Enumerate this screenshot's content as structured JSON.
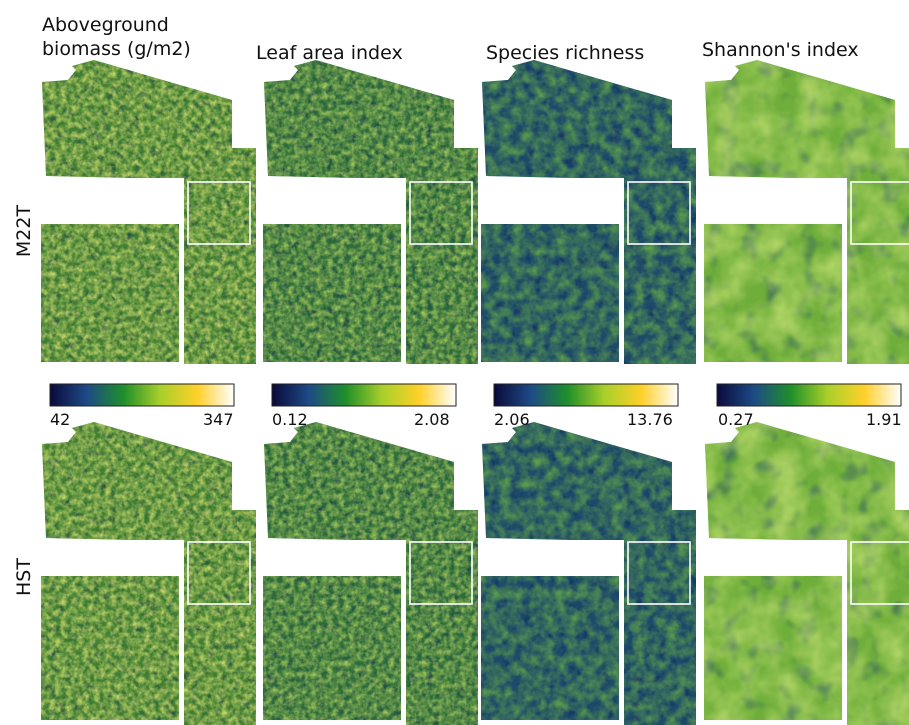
{
  "columns": [
    {
      "title": "Aboveground\nbiomass (g/m2)",
      "min": "42",
      "max": "347",
      "ramp": [
        "#0a0a3a",
        "#1d4a86",
        "#1f8f2a",
        "#a9cf2a",
        "#ffd02a",
        "#ffffff"
      ]
    },
    {
      "title": "Leaf area index",
      "min": "0.12",
      "max": "2.08",
      "ramp": [
        "#0a0a3a",
        "#1d4a86",
        "#1f8f2a",
        "#a9cf2a",
        "#ffd02a",
        "#ffffff"
      ]
    },
    {
      "title": "Species richness",
      "min": "2.06",
      "max": "13.76",
      "ramp": [
        "#0a0a3a",
        "#1d4a86",
        "#1f8f2a",
        "#a9cf2a",
        "#ffd02a",
        "#ffffff"
      ]
    },
    {
      "title": "Shannon's index",
      "min": "0.27",
      "max": "1.91",
      "ramp": [
        "#0a0a3a",
        "#1d4a86",
        "#1f8f2a",
        "#a9cf2a",
        "#ffd02a",
        "#ffffff"
      ]
    }
  ],
  "rows": [
    {
      "label": "M22T"
    },
    {
      "label": "HST"
    }
  ],
  "palette": {
    "panel_base": [
      "#3f7d33",
      "#2c6a3c",
      "#1d4a6a",
      "#6fae3a"
    ],
    "panel_light": [
      "#c9d86a",
      "#a7c95a",
      "#5fa24a",
      "#b6d86a"
    ],
    "panel_dark": [
      "#16334a",
      "#142c52",
      "#101f5a",
      "#234a6a"
    ],
    "inset_frame": "#ffffff"
  }
}
